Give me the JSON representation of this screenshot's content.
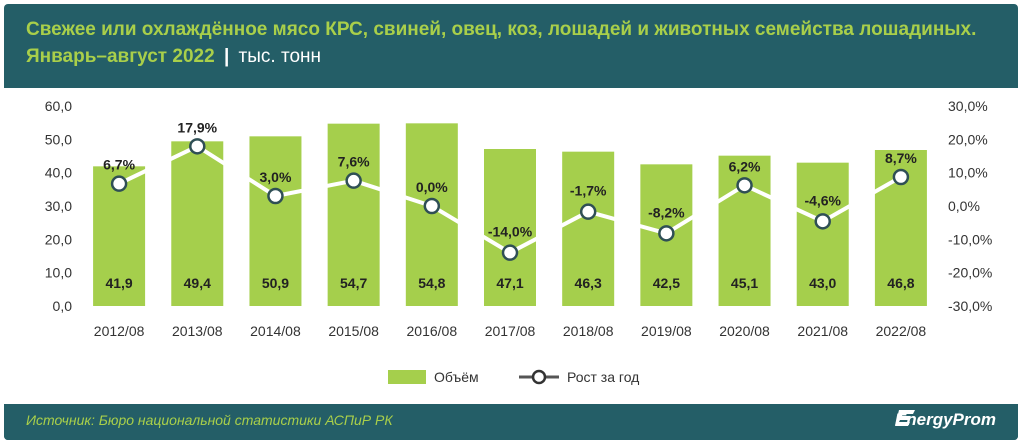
{
  "title_main": "Свежее или охлаждённое мясо КРС, свиней, овец, коз, лошадей и животных семейства лошадиных. Январь–август 2022",
  "title_sep": "|",
  "title_unit": "тыс. тонн",
  "source": "Источник: Бюро национальной статистики АСПиР РК",
  "logo_text": "EnergyProm",
  "colors": {
    "bar": "#a5cf4c",
    "line": "#ffffff",
    "header": "#245e67",
    "accent": "#a9cf4a"
  },
  "chart_data": {
    "type": "bar",
    "categories": [
      "2012/08",
      "2013/08",
      "2014/08",
      "2015/08",
      "2016/08",
      "2017/08",
      "2018/08",
      "2019/08",
      "2020/08",
      "2021/08",
      "2022/08"
    ],
    "series": [
      {
        "name": "Объём",
        "type": "bar",
        "axis": "left",
        "values": [
          41.9,
          49.4,
          50.9,
          54.7,
          54.8,
          47.1,
          46.3,
          42.5,
          45.1,
          43.0,
          46.8
        ],
        "labels": [
          "41,9",
          "49,4",
          "50,9",
          "54,7",
          "54,8",
          "47,1",
          "46,3",
          "42,5",
          "45,1",
          "43,0",
          "46,8"
        ]
      },
      {
        "name": "Рост за год",
        "type": "line",
        "axis": "right",
        "values": [
          6.7,
          17.9,
          3.0,
          7.6,
          0.0,
          -14.0,
          -1.7,
          -8.2,
          6.2,
          -4.6,
          8.7
        ],
        "labels": [
          "6,7%",
          "17,9%",
          "3,0%",
          "7,6%",
          "0,0%",
          "-14,0%",
          "-1,7%",
          "-8,2%",
          "6,2%",
          "-4,6%",
          "8,7%"
        ]
      }
    ],
    "y_left": {
      "min": 0,
      "max": 60,
      "ticks": [
        "0,0",
        "10,0",
        "20,0",
        "30,0",
        "40,0",
        "50,0",
        "60,0"
      ]
    },
    "y_right": {
      "min": -30,
      "max": 30,
      "ticks": [
        "-30,0%",
        "-20,0%",
        "-10,0%",
        "0,0%",
        "10,0%",
        "20,0%",
        "30,0%"
      ]
    },
    "grid": false,
    "legend_position": "bottom"
  }
}
